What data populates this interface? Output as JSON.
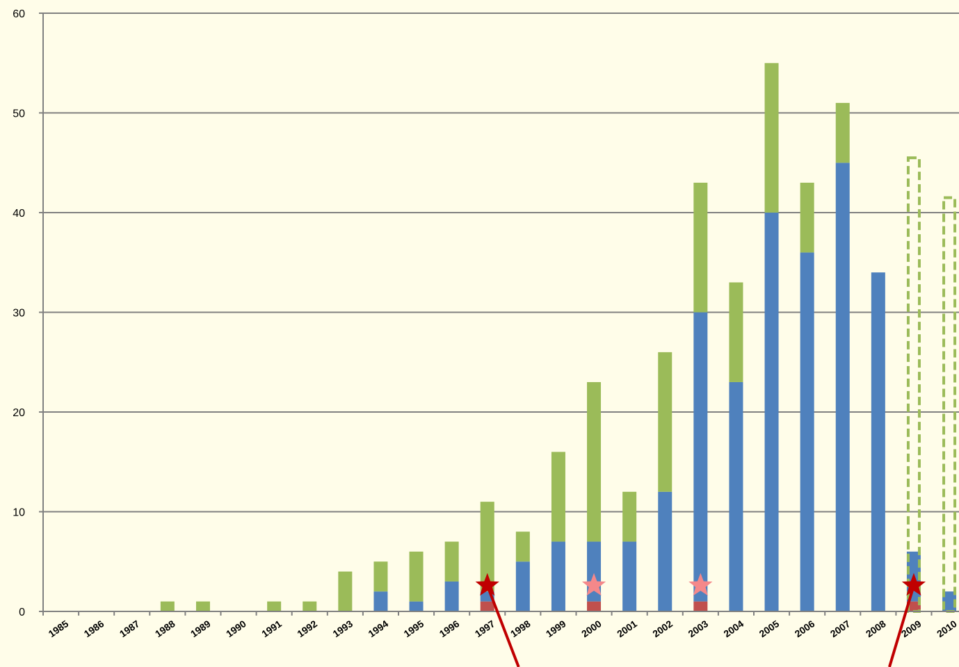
{
  "chart_data": {
    "type": "stacked-bar",
    "categories": [
      "1985",
      "1986",
      "1987",
      "1988",
      "1989",
      "1990",
      "1991",
      "1992",
      "1993",
      "1994",
      "1995",
      "1996",
      "1997",
      "1998",
      "1999",
      "2000",
      "2001",
      "2002",
      "2003",
      "2004",
      "2005",
      "2006",
      "2007",
      "2008",
      "2009",
      "2010"
    ],
    "series": [
      {
        "color": "#c0504d",
        "values": [
          0,
          0,
          0,
          0,
          0,
          0,
          0,
          0,
          0,
          0,
          0,
          0,
          1,
          0,
          0,
          1,
          0,
          0,
          1,
          0,
          0,
          0,
          0,
          0,
          1,
          0
        ]
      },
      {
        "color": "#4f81bd",
        "values": [
          0,
          0,
          0,
          0,
          0,
          0,
          0,
          0,
          0,
          2,
          1,
          3,
          1,
          5,
          7,
          6,
          7,
          12,
          29,
          23,
          40,
          36,
          45,
          34,
          5,
          2
        ]
      },
      {
        "color": "#9bbb59",
        "values": [
          0,
          0,
          0,
          1,
          1,
          0,
          1,
          1,
          4,
          3,
          5,
          4,
          9,
          3,
          9,
          16,
          5,
          14,
          13,
          10,
          15,
          7,
          6,
          0,
          0,
          0
        ]
      }
    ],
    "projected": {
      "color": "#9bbb59",
      "values": [
        null,
        null,
        null,
        null,
        null,
        null,
        null,
        null,
        null,
        null,
        null,
        null,
        null,
        null,
        null,
        null,
        null,
        null,
        null,
        null,
        null,
        null,
        null,
        null,
        45.5,
        41.5
      ]
    },
    "stars": [
      {
        "category": "1997",
        "color": "#c00000"
      },
      {
        "category": "2000",
        "color": "#f4888a"
      },
      {
        "category": "2003",
        "color": "#f4888a"
      },
      {
        "category": "2009",
        "color": "#c00000"
      }
    ],
    "ylim": [
      0,
      60
    ],
    "yticks": [
      0,
      10,
      20,
      30,
      40,
      50,
      60
    ],
    "grid": true
  }
}
